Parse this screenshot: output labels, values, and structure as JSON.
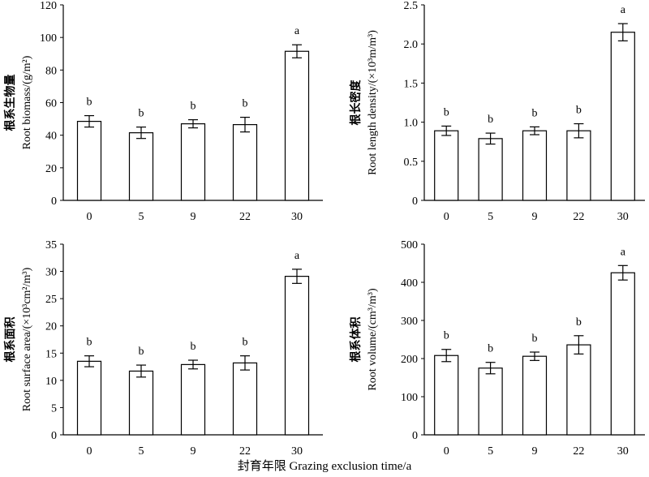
{
  "figure": {
    "x_axis_title": "封育年限 Grazing exclusion time/a"
  },
  "chart_data": [
    {
      "type": "bar",
      "categories": [
        "0",
        "5",
        "9",
        "22",
        "30"
      ],
      "values": [
        48.5,
        41.5,
        47.0,
        46.5,
        91.5
      ],
      "errors": [
        3.5,
        3.5,
        2.5,
        4.5,
        4.0
      ],
      "significance": [
        "b",
        "b",
        "b",
        "b",
        "a"
      ],
      "ylabel_cn": "根系生物量",
      "ylabel_en": "Root biomass/(g/m²)",
      "ylim": [
        0,
        120
      ],
      "yticks": [
        "0",
        "20",
        "40",
        "60",
        "80",
        "100",
        "120"
      ],
      "grid": false
    },
    {
      "type": "bar",
      "categories": [
        "0",
        "5",
        "9",
        "22",
        "30"
      ],
      "values": [
        0.89,
        0.79,
        0.89,
        0.89,
        2.15
      ],
      "errors": [
        0.06,
        0.07,
        0.05,
        0.09,
        0.11
      ],
      "significance": [
        "b",
        "b",
        "b",
        "b",
        "a"
      ],
      "ylabel_cn": "根长密度",
      "ylabel_en": "Root length density/(×10³m/m³)",
      "ylim": [
        0,
        2.5
      ],
      "yticks": [
        "0",
        "0.5",
        "1.0",
        "1.5",
        "2.0",
        "2.5"
      ],
      "grid": false
    },
    {
      "type": "bar",
      "categories": [
        "0",
        "5",
        "9",
        "22",
        "30"
      ],
      "values": [
        13.5,
        11.7,
        12.9,
        13.2,
        29.1
      ],
      "errors": [
        1.0,
        1.1,
        0.8,
        1.3,
        1.3
      ],
      "significance": [
        "b",
        "b",
        "b",
        "b",
        "a"
      ],
      "ylabel_cn": "根系面积",
      "ylabel_en": "Root surface area/(×10³cm²/m³)",
      "ylim": [
        0,
        35
      ],
      "yticks": [
        "0",
        "5",
        "10",
        "15",
        "20",
        "25",
        "30",
        "35"
      ],
      "grid": false
    },
    {
      "type": "bar",
      "categories": [
        "0",
        "5",
        "9",
        "22",
        "30"
      ],
      "values": [
        208,
        175,
        206,
        236,
        425
      ],
      "errors": [
        16,
        15,
        11,
        24,
        19
      ],
      "significance": [
        "b",
        "b",
        "b",
        "b",
        "a"
      ],
      "ylabel_cn": "根系体积",
      "ylabel_en": "Root volume/(cm³/m³)",
      "ylim": [
        0,
        500
      ],
      "yticks": [
        "0",
        "100",
        "200",
        "300",
        "400",
        "500"
      ],
      "grid": false
    }
  ]
}
